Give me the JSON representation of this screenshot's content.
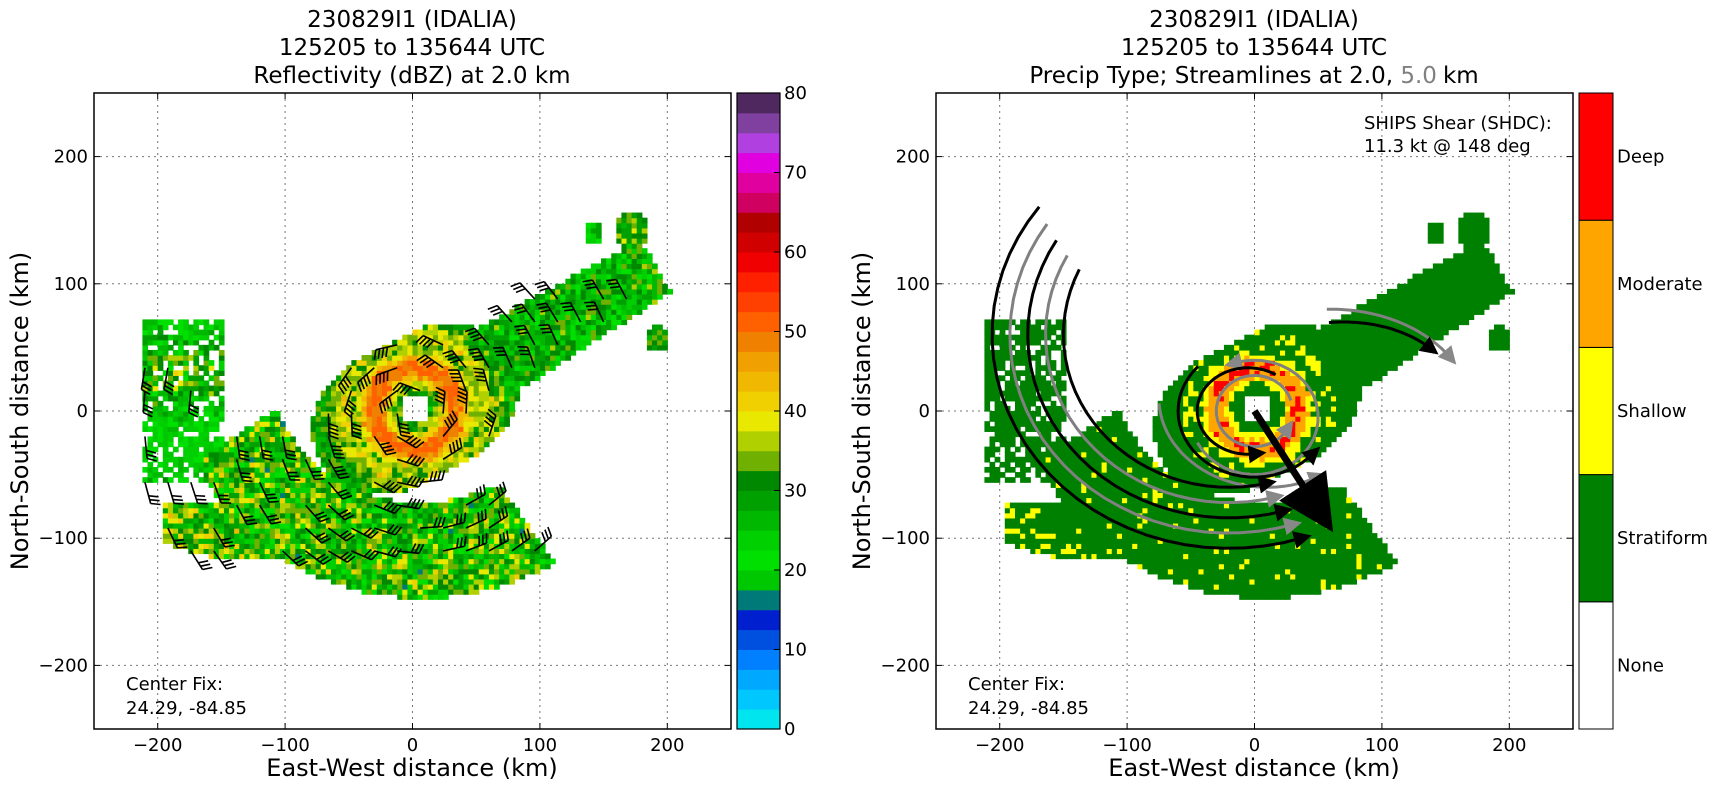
{
  "chart_data": [
    {
      "type": "heatmap",
      "title": [
        "230829I1 (IDALIA)",
        "125205 to 135644 UTC",
        "Reflectivity (dBZ) at 2.0 km"
      ],
      "xlabel": "East-West distance (km)",
      "ylabel": "North-South distance (km)",
      "xlim": [
        -250,
        250
      ],
      "ylim": [
        -250,
        250
      ],
      "xticks": [
        -200,
        -100,
        0,
        100,
        200
      ],
      "yticks": [
        -200,
        -100,
        0,
        100,
        200
      ],
      "grid": true,
      "annotation": [
        "Center Fix:",
        "24.29, -84.85"
      ],
      "colorbar": {
        "range": [
          0,
          80
        ],
        "step": 2.5,
        "ticks": [
          0,
          10,
          20,
          30,
          40,
          50,
          60,
          70,
          80
        ],
        "colors": [
          "#00e5ee",
          "#00c8ff",
          "#00a8ff",
          "#0080ff",
          "#0050e0",
          "#0020d0",
          "#007a78",
          "#00c800",
          "#00e000",
          "#00d000",
          "#00b800",
          "#00a000",
          "#008800",
          "#70b000",
          "#b0d000",
          "#e8e800",
          "#f0d000",
          "#f0b800",
          "#f0a000",
          "#f08000",
          "#ff6000",
          "#ff4000",
          "#ff2000",
          "#f00000",
          "#d00000",
          "#b00000",
          "#d00060",
          "#e000a0",
          "#e000e0",
          "#b040e0",
          "#8040a0",
          "#502860",
          "#000000"
        ]
      },
      "storm": {
        "eye_radius_km": 12,
        "inner_ring_radius_km": 32,
        "outer_ring_radius_km": 70,
        "band_center_km": [
          -100,
          -30
        ],
        "band_extent_km": [
          [
            -220,
            60
          ],
          [
            -50,
            -120
          ]
        ],
        "ne_arm_end_km": [
          185,
          110
        ]
      }
    },
    {
      "type": "heatmap",
      "title": [
        "230829I1 (IDALIA)",
        "125205 to 135644 UTC",
        "Precip Type; Streamlines at 2.0, ",
        "5.0",
        "km"
      ],
      "xlabel": "East-West distance (km)",
      "ylabel": "North-South distance (km)",
      "xlim": [
        -250,
        250
      ],
      "ylim": [
        -250,
        250
      ],
      "xticks": [
        -200,
        -100,
        0,
        100,
        200
      ],
      "yticks": [
        -200,
        -100,
        0,
        100,
        200
      ],
      "grid": true,
      "annotation": [
        "Center Fix:",
        "24.29, -84.85"
      ],
      "shear_text": [
        "SHIPS Shear (SHDC):",
        "11.3 kt @ 148 deg"
      ],
      "shear": {
        "speed_kt": 11.3,
        "direction_deg": 148,
        "arrow_start_km": [
          0,
          0
        ],
        "arrow_end_km": [
          55,
          -85
        ]
      },
      "categories": [
        "None",
        "Stratiform",
        "Shallow",
        "Moderate",
        "Deep"
      ],
      "category_colors": [
        "#ffffff",
        "#008000",
        "#ffff00",
        "#ffa500",
        "#ff0000"
      ],
      "streamline_colors": {
        "level_2km": "#000000",
        "level_5km": "#808080"
      }
    }
  ]
}
